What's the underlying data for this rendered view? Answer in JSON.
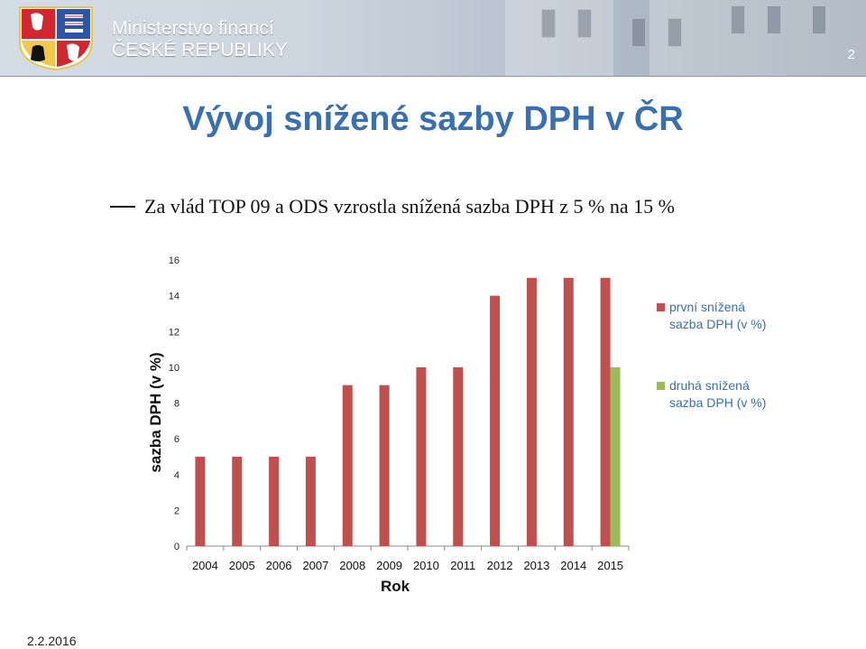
{
  "header": {
    "ministry_line1": "Ministerstvo financí",
    "ministry_line2": "ČESKÉ REPUBLIKY",
    "slide_number": "2",
    "crest_icon": "czech-coat-of-arms-icon"
  },
  "slide": {
    "title": "Vývoj snížené sazby DPH v ČR",
    "bullet": "Za vlád TOP 09 a ODS vzrostla snížená sazba DPH z 5 % na 15 %",
    "date": "2.2.2016"
  },
  "colors": {
    "title": "#3a6fb0",
    "series1": "#c0504d",
    "series2": "#9bbb59",
    "legend_text": "#3a6fb0"
  },
  "chart_data": {
    "type": "bar",
    "categories": [
      "2004",
      "2005",
      "2006",
      "2007",
      "2008",
      "2009",
      "2010",
      "2011",
      "2012",
      "2013",
      "2014",
      "2015"
    ],
    "series": [
      {
        "name": "první snížená sazba DPH (v %)",
        "values": [
          5,
          5,
          5,
          5,
          9,
          9,
          10,
          10,
          14,
          15,
          15,
          15
        ]
      },
      {
        "name": "druhá snížená sazba DPH (v %)",
        "values": [
          null,
          null,
          null,
          null,
          null,
          null,
          null,
          null,
          null,
          null,
          null,
          10
        ]
      }
    ],
    "xlabel": "Rok",
    "ylabel": "sazba DPH (v %)",
    "ylim": [
      0,
      16
    ],
    "yticks": [
      0,
      2,
      4,
      6,
      8,
      10,
      12,
      14,
      16
    ],
    "grid": false,
    "legend_position": "right"
  }
}
